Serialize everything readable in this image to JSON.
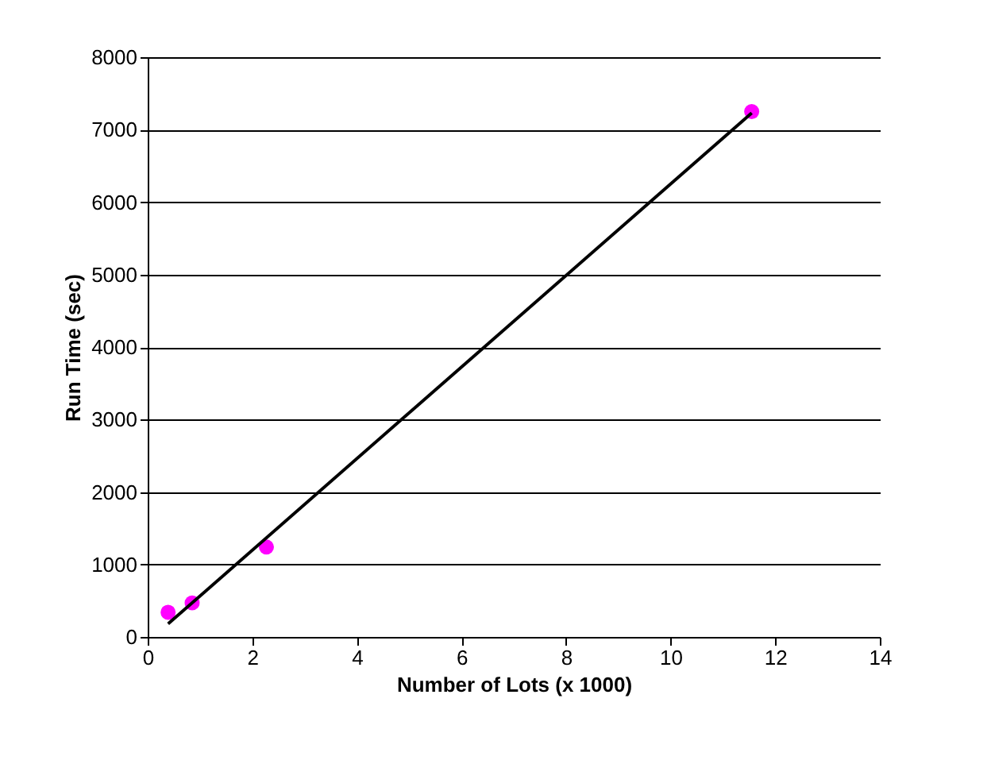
{
  "chart_data": {
    "type": "scatter",
    "xlabel": "Number of Lots (x 1000)",
    "ylabel": "Run Time (sec)",
    "xlim": [
      0,
      14
    ],
    "xticks": [
      0,
      2,
      4,
      6,
      8,
      10,
      12,
      14
    ],
    "ylim": [
      0,
      8000
    ],
    "yticks": [
      0,
      1000,
      2000,
      3000,
      4000,
      5000,
      6000,
      7000,
      8000
    ],
    "grid": "y",
    "series": [
      {
        "marker": "circle",
        "color": "#ff00ff",
        "x": [
          0.39,
          0.85,
          2.27,
          11.55
        ],
        "values": [
          340,
          470,
          1240,
          7250
        ]
      },
      {
        "type": "line",
        "color": "#000000",
        "x": [
          0.39,
          11.55
        ],
        "values": [
          180,
          7230
        ],
        "line_style": "solid",
        "marker": "none"
      }
    ]
  }
}
